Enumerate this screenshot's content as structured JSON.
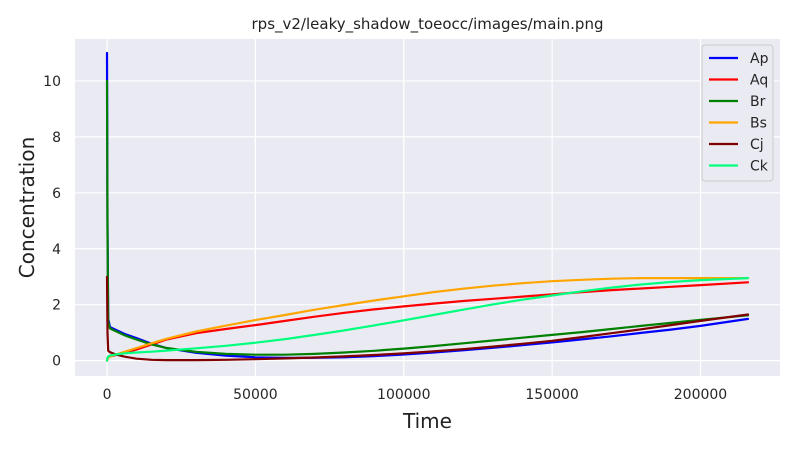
{
  "chart_data": {
    "type": "line",
    "title": "rps_v2/leaky_shadow_toeocc/images/main.png",
    "xlabel": "Time",
    "ylabel": "Concentration",
    "xlim": [
      -10800,
      226800
    ],
    "ylim": [
      -0.55,
      11.5
    ],
    "xticks": [
      0,
      50000,
      100000,
      150000,
      200000
    ],
    "yticks": [
      0,
      2,
      4,
      6,
      8,
      10
    ],
    "grid": true,
    "legend_position": "top-right",
    "series": [
      {
        "name": "Ap",
        "color": "#0000ff",
        "x": [
          0,
          150,
          400,
          1000,
          3000,
          6000,
          10000,
          15000,
          20000,
          30000,
          40000,
          50000,
          60000,
          70000,
          80000,
          90000,
          100000,
          110000,
          120000,
          130000,
          140000,
          150000,
          160000,
          170000,
          180000,
          190000,
          200000,
          216000
        ],
        "y": [
          11.0,
          5.0,
          1.5,
          1.2,
          1.1,
          0.95,
          0.8,
          0.6,
          0.45,
          0.28,
          0.18,
          0.12,
          0.1,
          0.1,
          0.12,
          0.16,
          0.22,
          0.29,
          0.37,
          0.46,
          0.55,
          0.65,
          0.76,
          0.87,
          0.99,
          1.11,
          1.24,
          1.49
        ]
      },
      {
        "name": "Aq",
        "color": "#ff0000",
        "x": [
          0,
          150,
          400,
          1000,
          3000,
          6000,
          10000,
          15000,
          20000,
          30000,
          40000,
          50000,
          60000,
          70000,
          80000,
          90000,
          100000,
          110000,
          120000,
          130000,
          140000,
          150000,
          160000,
          170000,
          180000,
          190000,
          200000,
          216000
        ],
        "y": [
          0.0,
          0.05,
          0.1,
          0.15,
          0.2,
          0.28,
          0.4,
          0.58,
          0.75,
          0.98,
          1.13,
          1.27,
          1.42,
          1.57,
          1.71,
          1.83,
          1.94,
          2.04,
          2.13,
          2.21,
          2.29,
          2.37,
          2.45,
          2.52,
          2.58,
          2.64,
          2.7,
          2.8
        ]
      },
      {
        "name": "Br",
        "color": "#008000",
        "x": [
          0,
          150,
          400,
          1000,
          3000,
          6000,
          10000,
          15000,
          20000,
          30000,
          40000,
          50000,
          60000,
          70000,
          80000,
          90000,
          100000,
          110000,
          120000,
          130000,
          140000,
          150000,
          160000,
          170000,
          180000,
          190000,
          200000,
          216000
        ],
        "y": [
          10.0,
          4.5,
          1.4,
          1.15,
          1.05,
          0.9,
          0.75,
          0.58,
          0.45,
          0.31,
          0.24,
          0.21,
          0.21,
          0.24,
          0.29,
          0.35,
          0.43,
          0.52,
          0.62,
          0.72,
          0.82,
          0.92,
          1.02,
          1.13,
          1.24,
          1.35,
          1.46,
          1.62
        ]
      },
      {
        "name": "Bs",
        "color": "#ffa500",
        "x": [
          0,
          150,
          400,
          1000,
          3000,
          6000,
          10000,
          15000,
          20000,
          30000,
          40000,
          50000,
          60000,
          70000,
          80000,
          90000,
          100000,
          110000,
          120000,
          130000,
          140000,
          150000,
          160000,
          170000,
          180000,
          190000,
          200000,
          216000
        ],
        "y": [
          0.0,
          0.05,
          0.1,
          0.15,
          0.22,
          0.32,
          0.45,
          0.62,
          0.78,
          1.04,
          1.25,
          1.45,
          1.63,
          1.82,
          1.99,
          2.15,
          2.3,
          2.45,
          2.57,
          2.68,
          2.77,
          2.84,
          2.89,
          2.93,
          2.95,
          2.95,
          2.95,
          2.95
        ]
      },
      {
        "name": "Cj",
        "color": "#800000",
        "x": [
          0,
          150,
          400,
          1000,
          3000,
          6000,
          10000,
          15000,
          20000,
          30000,
          40000,
          50000,
          60000,
          70000,
          80000,
          90000,
          100000,
          110000,
          120000,
          130000,
          140000,
          150000,
          160000,
          170000,
          180000,
          190000,
          200000,
          216000
        ],
        "y": [
          3.0,
          1.0,
          0.35,
          0.3,
          0.22,
          0.14,
          0.07,
          0.03,
          0.02,
          0.02,
          0.03,
          0.05,
          0.08,
          0.11,
          0.15,
          0.2,
          0.26,
          0.33,
          0.41,
          0.5,
          0.6,
          0.71,
          0.84,
          0.98,
          1.12,
          1.27,
          1.42,
          1.65
        ]
      },
      {
        "name": "Ck",
        "color": "#00ff7f",
        "x": [
          0,
          150,
          400,
          1000,
          3000,
          6000,
          10000,
          15000,
          20000,
          30000,
          40000,
          50000,
          60000,
          70000,
          80000,
          90000,
          100000,
          110000,
          120000,
          130000,
          140000,
          150000,
          160000,
          170000,
          180000,
          190000,
          200000,
          216000
        ],
        "y": [
          0.0,
          0.1,
          0.15,
          0.18,
          0.22,
          0.26,
          0.29,
          0.32,
          0.36,
          0.44,
          0.53,
          0.64,
          0.77,
          0.92,
          1.08,
          1.26,
          1.44,
          1.63,
          1.82,
          2.01,
          2.18,
          2.33,
          2.48,
          2.61,
          2.72,
          2.81,
          2.88,
          2.95
        ]
      }
    ]
  }
}
